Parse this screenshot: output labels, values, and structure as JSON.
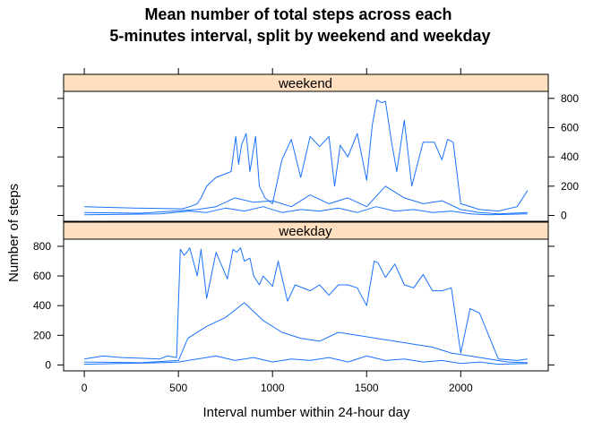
{
  "chart_data": {
    "type": "line",
    "title_lines": [
      "Mean number of total steps across each",
      "5-minutes interval, split by weekend and weekday"
    ],
    "xlabel": "Interval number within 24-hour day",
    "ylabel": "Number of steps",
    "xlim": [
      -110,
      2465
    ],
    "x_ticks": [
      0,
      500,
      1000,
      1500,
      2000
    ],
    "x_tick_labels": [
      "0",
      "500",
      "1000",
      "1500",
      "2000"
    ],
    "y_ticks": [
      0,
      200,
      400,
      600,
      800
    ],
    "y_tick_labels": [
      "0",
      "200",
      "400",
      "600",
      "800"
    ],
    "ylim": [
      -40,
      848
    ],
    "grid": false,
    "line_color": "#1a73ff",
    "strip_color": "#ffdfbf",
    "panels": [
      {
        "strip": "weekend",
        "series": [
          {
            "x": [
              0,
              130,
              260,
              390,
              520,
              560,
              600,
              620,
              650,
              700,
              780,
              805,
              820,
              835,
              860,
              880,
              910,
              930,
              960,
              1000,
              1050,
              1100,
              1150,
              1200,
              1250,
              1300,
              1330,
              1360,
              1400,
              1450,
              1500,
              1530,
              1555,
              1580,
              1600,
              1630,
              1660,
              1700,
              1740,
              1800,
              1860,
              1900,
              1930,
              1960,
              2000,
              2100,
              2200,
              2300,
              2355
            ],
            "y": [
              60,
              55,
              50,
              48,
              45,
              60,
              80,
              120,
              200,
              260,
              300,
              540,
              350,
              480,
              560,
              300,
              540,
              200,
              120,
              80,
              380,
              520,
              260,
              540,
              470,
              540,
              200,
              480,
              400,
              560,
              240,
              620,
              790,
              770,
              780,
              520,
              300,
              650,
              200,
              500,
              500,
              380,
              520,
              500,
              80,
              40,
              30,
              60,
              170
            ]
          },
          {
            "x": [
              0,
              300,
              600,
              700,
              800,
              900,
              1000,
              1100,
              1200,
              1300,
              1400,
              1500,
              1600,
              1700,
              1800,
              1900,
              2000,
              2100,
              2200,
              2355
            ],
            "y": [
              20,
              15,
              40,
              60,
              120,
              90,
              100,
              60,
              140,
              80,
              120,
              60,
              200,
              120,
              80,
              100,
              40,
              20,
              10,
              20
            ]
          },
          {
            "x": [
              0,
              400,
              560,
              650,
              750,
              850,
              950,
              1050,
              1150,
              1250,
              1350,
              1450,
              1550,
              1650,
              1750,
              1850,
              1950,
              2050,
              2150,
              2355
            ],
            "y": [
              5,
              10,
              30,
              20,
              50,
              30,
              60,
              20,
              40,
              30,
              50,
              20,
              60,
              30,
              40,
              20,
              30,
              10,
              5,
              10
            ]
          }
        ]
      },
      {
        "strip": "weekday",
        "series": [
          {
            "x": [
              0,
              100,
              200,
              300,
              400,
              440,
              490,
              510,
              530,
              545,
              560,
              600,
              620,
              650,
              700,
              760,
              790,
              810,
              830,
              850,
              880,
              900,
              930,
              950,
              1000,
              1030,
              1080,
              1120,
              1200,
              1250,
              1300,
              1350,
              1400,
              1450,
              1500,
              1540,
              1560,
              1600,
              1650,
              1700,
              1750,
              1800,
              1850,
              1900,
              1950,
              2000,
              2050,
              2100,
              2200,
              2300,
              2355
            ],
            "y": [
              40,
              60,
              50,
              45,
              40,
              60,
              50,
              780,
              740,
              760,
              790,
              600,
              780,
              450,
              760,
              580,
              780,
              760,
              790,
              700,
              720,
              600,
              540,
              600,
              530,
              700,
              430,
              540,
              500,
              540,
              470,
              540,
              540,
              520,
              400,
              700,
              690,
              590,
              680,
              540,
              520,
              610,
              500,
              500,
              520,
              80,
              380,
              350,
              40,
              30,
              40
            ]
          },
          {
            "x": [
              0,
              300,
              500,
              550,
              650,
              750,
              850,
              950,
              1050,
              1150,
              1250,
              1350,
              1450,
              1550,
              1650,
              1750,
              1850,
              1950,
              2050,
              2150,
              2250,
              2355
            ],
            "y": [
              20,
              15,
              30,
              180,
              260,
              320,
              420,
              300,
              220,
              180,
              160,
              220,
              200,
              180,
              160,
              140,
              120,
              80,
              60,
              40,
              20,
              15
            ]
          },
          {
            "x": [
              0,
              200,
              400,
              500,
              600,
              700,
              800,
              900,
              1000,
              1100,
              1200,
              1300,
              1400,
              1500,
              1600,
              1700,
              1800,
              1900,
              2000,
              2100,
              2200,
              2355
            ],
            "y": [
              5,
              10,
              15,
              20,
              40,
              60,
              30,
              50,
              20,
              40,
              30,
              50,
              20,
              60,
              30,
              40,
              20,
              30,
              10,
              20,
              5,
              10
            ]
          }
        ]
      }
    ]
  }
}
